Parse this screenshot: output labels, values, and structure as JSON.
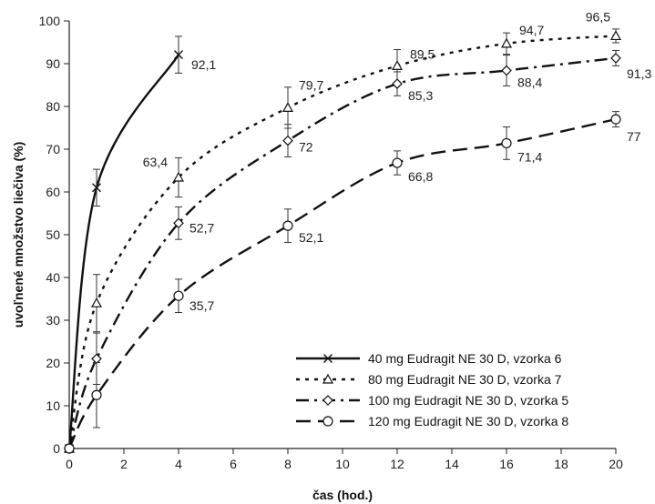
{
  "chart_data": {
    "type": "line",
    "xlabel": "čas (hod.)",
    "ylabel": "uvoľnené množstvo liečiva (%)",
    "xlim": [
      0,
      20
    ],
    "ylim": [
      0,
      100
    ],
    "xticks": [
      "0",
      "2",
      "4",
      "6",
      "8",
      "10",
      "12",
      "14",
      "16",
      "18",
      "20"
    ],
    "yticks": [
      "0",
      "10",
      "20",
      "30",
      "40",
      "50",
      "60",
      "70",
      "80",
      "90",
      "100"
    ],
    "grid": false,
    "legend_position": "bottom-right",
    "series": [
      {
        "name": "40 mg Eudragit NE 30 D, vzorka 6",
        "marker": "x",
        "dash": "solid",
        "points": [
          {
            "x": 0,
            "y": 0,
            "err": 0,
            "label": ""
          },
          {
            "x": 1,
            "y": 61.0,
            "err": 4.3,
            "label": ""
          },
          {
            "x": 4,
            "y": 92.1,
            "err": 4.3,
            "label": "92,1"
          }
        ]
      },
      {
        "name": "80 mg Eudragit NE 30 D, vzorka 7",
        "marker": "triangle",
        "dash": "dotted",
        "points": [
          {
            "x": 0,
            "y": 0,
            "err": 0,
            "label": ""
          },
          {
            "x": 1,
            "y": 34.0,
            "err": 6.7,
            "label": ""
          },
          {
            "x": 4,
            "y": 63.4,
            "err": 4.6,
            "label": "63,4"
          },
          {
            "x": 8,
            "y": 79.7,
            "err": 4.8,
            "label": "79,7"
          },
          {
            "x": 12,
            "y": 89.5,
            "err": 3.8,
            "label": "89,5"
          },
          {
            "x": 16,
            "y": 94.7,
            "err": 2.5,
            "label": "94,7"
          },
          {
            "x": 20,
            "y": 96.5,
            "err": 1.6,
            "label": "96,5"
          }
        ]
      },
      {
        "name": "100 mg Eudragit NE 30 D, vzorka 5",
        "marker": "diamond",
        "dash": "dashdot",
        "points": [
          {
            "x": 0,
            "y": 0,
            "err": 0,
            "label": ""
          },
          {
            "x": 1,
            "y": 21.0,
            "err": 6.0,
            "label": ""
          },
          {
            "x": 4,
            "y": 52.7,
            "err": 3.8,
            "label": "52,7"
          },
          {
            "x": 8,
            "y": 72.0,
            "err": 3.8,
            "label": "72"
          },
          {
            "x": 12,
            "y": 85.3,
            "err": 2.8,
            "label": "85,3"
          },
          {
            "x": 16,
            "y": 88.4,
            "err": 3.6,
            "label": "88,4"
          },
          {
            "x": 20,
            "y": 91.3,
            "err": 1.8,
            "label": "91,3"
          }
        ]
      },
      {
        "name": "120 mg Eudragit NE 30 D, vzorka 8",
        "marker": "circle",
        "dash": "longdash",
        "points": [
          {
            "x": 0,
            "y": 0,
            "err": 0,
            "label": ""
          },
          {
            "x": 1,
            "y": 12.5,
            "err": 7.6,
            "label": ""
          },
          {
            "x": 4,
            "y": 35.7,
            "err": 3.9,
            "label": "35,7"
          },
          {
            "x": 8,
            "y": 52.1,
            "err": 3.9,
            "label": "52,1"
          },
          {
            "x": 12,
            "y": 66.8,
            "err": 2.8,
            "label": "66,8"
          },
          {
            "x": 16,
            "y": 71.4,
            "err": 3.8,
            "label": "71,4"
          },
          {
            "x": 20,
            "y": 77.0,
            "err": 1.8,
            "label": "77"
          }
        ]
      }
    ]
  }
}
